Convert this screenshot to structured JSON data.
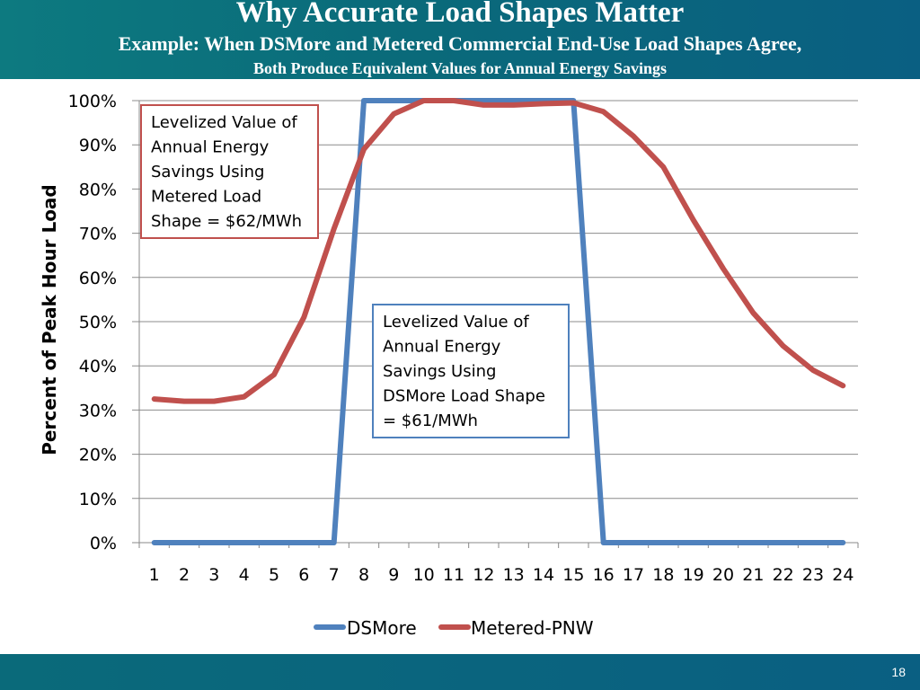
{
  "slide": {
    "title": "Why Accurate Load Shapes Matter",
    "subtitle_line1": "Example: When DSMore and Metered Commercial End-Use Load Shapes Agree,",
    "subtitle_line2": "Both Produce Equivalent Values for Annual Energy Savings",
    "page_number": "18"
  },
  "colors": {
    "header": "#0a6a7a",
    "dsmore": "#4f81bd",
    "metered": "#c0504d"
  },
  "chart_data": {
    "type": "line",
    "x": [
      1,
      2,
      3,
      4,
      5,
      6,
      7,
      8,
      9,
      10,
      11,
      12,
      13,
      14,
      15,
      16,
      17,
      18,
      19,
      20,
      21,
      22,
      23,
      24
    ],
    "x_tick_labels": [
      "1",
      "2",
      "3",
      "4",
      "5",
      "6",
      "7",
      "8",
      "9",
      "10",
      "11",
      "12",
      "13",
      "14",
      "15",
      "16",
      "17",
      "18",
      "19",
      "20",
      "21",
      "22",
      "23",
      "24"
    ],
    "ylabel": "Percent of Peak Hour Load",
    "xlabel": "",
    "ylim": [
      0,
      100
    ],
    "y_tick_labels": [
      "0%",
      "10%",
      "20%",
      "30%",
      "40%",
      "50%",
      "60%",
      "70%",
      "80%",
      "90%",
      "100%"
    ],
    "grid": true,
    "legend_position": "bottom",
    "series": [
      {
        "name": "DSMore",
        "color": "#4f81bd",
        "values": [
          0,
          0,
          0,
          0,
          0,
          0,
          0,
          100,
          100,
          100,
          100,
          100,
          100,
          100,
          100,
          0,
          0,
          0,
          0,
          0,
          0,
          0,
          0,
          0
        ]
      },
      {
        "name": "Metered-PNW",
        "color": "#c0504d",
        "values": [
          32.5,
          32,
          32,
          33,
          38,
          51,
          71,
          89,
          97,
          100,
          100,
          99,
          99,
          99.3,
          99.5,
          97.5,
          92,
          85,
          73,
          62,
          52,
          44.5,
          39,
          35.5
        ]
      }
    ],
    "annotations": [
      {
        "lines": [
          "Levelized Value of",
          "Annual Energy",
          "Savings Using",
          "Metered Load",
          "Shape = $62/MWh"
        ],
        "border_color": "#c0504d"
      },
      {
        "lines": [
          "Levelized Value of",
          "Annual Energy",
          "Savings Using",
          "DSMore Load Shape",
          "= $61/MWh"
        ],
        "border_color": "#4f81bd"
      }
    ]
  }
}
